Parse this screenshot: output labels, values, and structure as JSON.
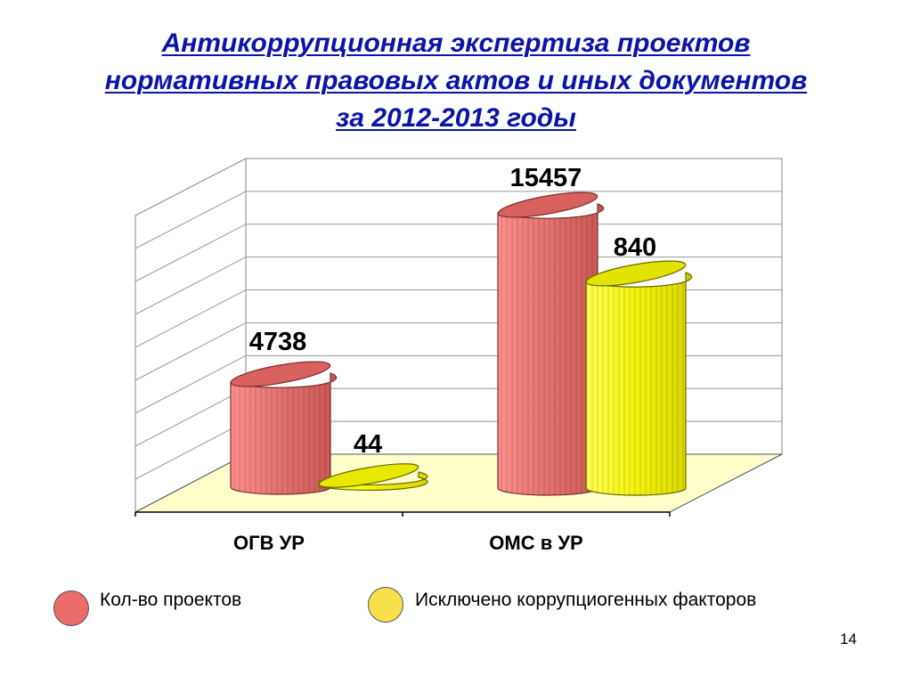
{
  "title": {
    "line1": "Антикоррупционная экспертиза проектов",
    "line2": "нормативных правовых актов и иных документов",
    "line3": "за 2012-2013 годы"
  },
  "chart_data": {
    "type": "bar",
    "categories": [
      "ОГВ УР",
      "ОМС в УР"
    ],
    "series": [
      {
        "name": "Кол-во проектов",
        "values": [
          4738,
          15457
        ],
        "color": "#e27a78"
      },
      {
        "name": "Исключено коррупциогенных факторов",
        "values": [
          44,
          840
        ],
        "color": "#ffff33"
      }
    ],
    "data_labels": [
      [
        "4738",
        "44"
      ],
      [
        "15457",
        "840"
      ]
    ],
    "style": "3d-cylinder",
    "scale": "non-linear (bar heights not proportional to values)",
    "grid": true,
    "legend_position": "bottom"
  },
  "legend": {
    "items": [
      {
        "label": "Кол-во проектов",
        "color": "#ec6b6b"
      },
      {
        "label": "Исключено коррупциогенных факторов",
        "color": "#f8e04a"
      }
    ]
  },
  "page_number": "14"
}
